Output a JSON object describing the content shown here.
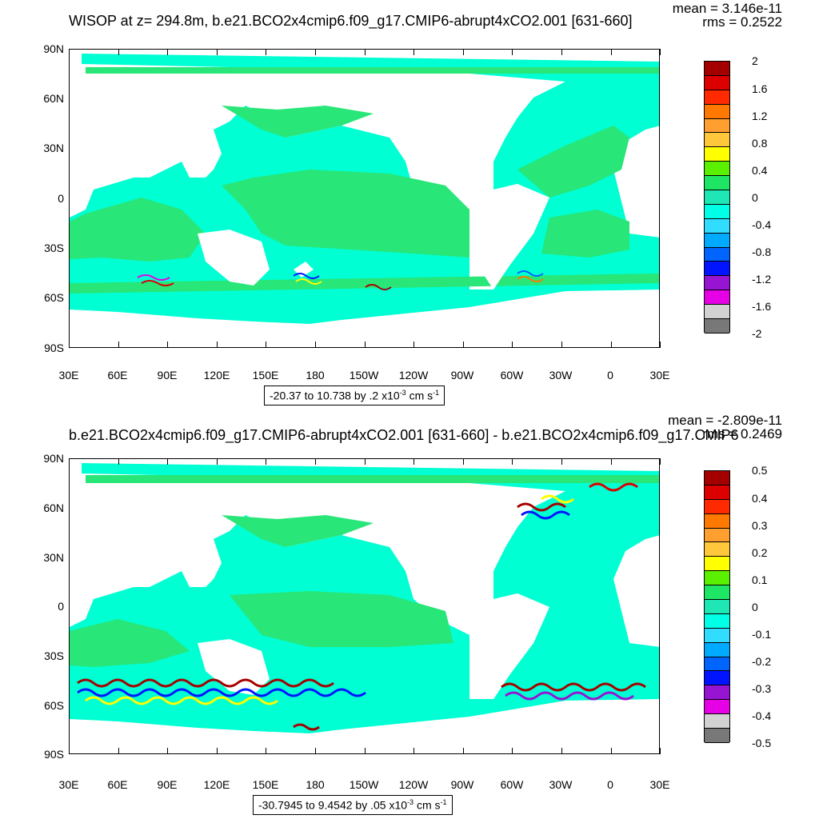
{
  "panels": [
    {
      "title": "WISOP at z= 294.8m, b.e21.BCO2x4cmip6.f09_g17.CMIP6-abrupt4xCO2.001 [631-660]",
      "mean": "mean = 3.146e-11",
      "rms": "rms = 0.2522",
      "range_text": "-20.37 to 10.738 by .2 x10",
      "units_exp": "-3",
      "units_mid": " cm s",
      "units_exp2": "-1",
      "colorbar_labels": [
        "2",
        "1.6",
        "1.2",
        "0.8",
        "0.4",
        "0",
        "-0.4",
        "-0.8",
        "-1.2",
        "-1.6",
        "-2"
      ]
    },
    {
      "title": "b.e21.BCO2x4cmip6.f09_g17.CMIP6-abrupt4xCO2.001 [631-660] - b.e21.BCO2x4cmip6.f09_g17.CMIP6",
      "mean": "mean = -2.809e-11",
      "rms": "rms = 0.2469",
      "range_text": "-30.7945 to 9.4542 by .05 x10",
      "units_exp": "-3",
      "units_mid": " cm s",
      "units_exp2": "-1",
      "colorbar_labels": [
        "0.5",
        "0.4",
        "0.3",
        "0.2",
        "0.1",
        "0",
        "-0.1",
        "-0.2",
        "-0.3",
        "-0.4",
        "-0.5"
      ]
    }
  ],
  "lat_labels": [
    "90N",
    "60N",
    "30N",
    "0",
    "30S",
    "60S",
    "90S"
  ],
  "lon_labels": [
    "30E",
    "60E",
    "90E",
    "120E",
    "150E",
    "180",
    "150W",
    "120W",
    "90W",
    "60W",
    "30W",
    "0",
    "30E"
  ],
  "colorbar_colors": [
    "#a50000",
    "#dc0000",
    "#ff2a00",
    "#ff7800",
    "#ff9f30",
    "#ffc83c",
    "#ffff00",
    "#5af000",
    "#1ee664",
    "#1ee6b4",
    "#00ffe6",
    "#32dcff",
    "#00aaff",
    "#0064ff",
    "#0014ff",
    "#9614d2",
    "#e600e6",
    "#d2d2d2",
    "#787878"
  ],
  "colors": {
    "ocean_main": "#00ffd2",
    "ocean_band": "#28e678",
    "land": "#ffffff"
  }
}
